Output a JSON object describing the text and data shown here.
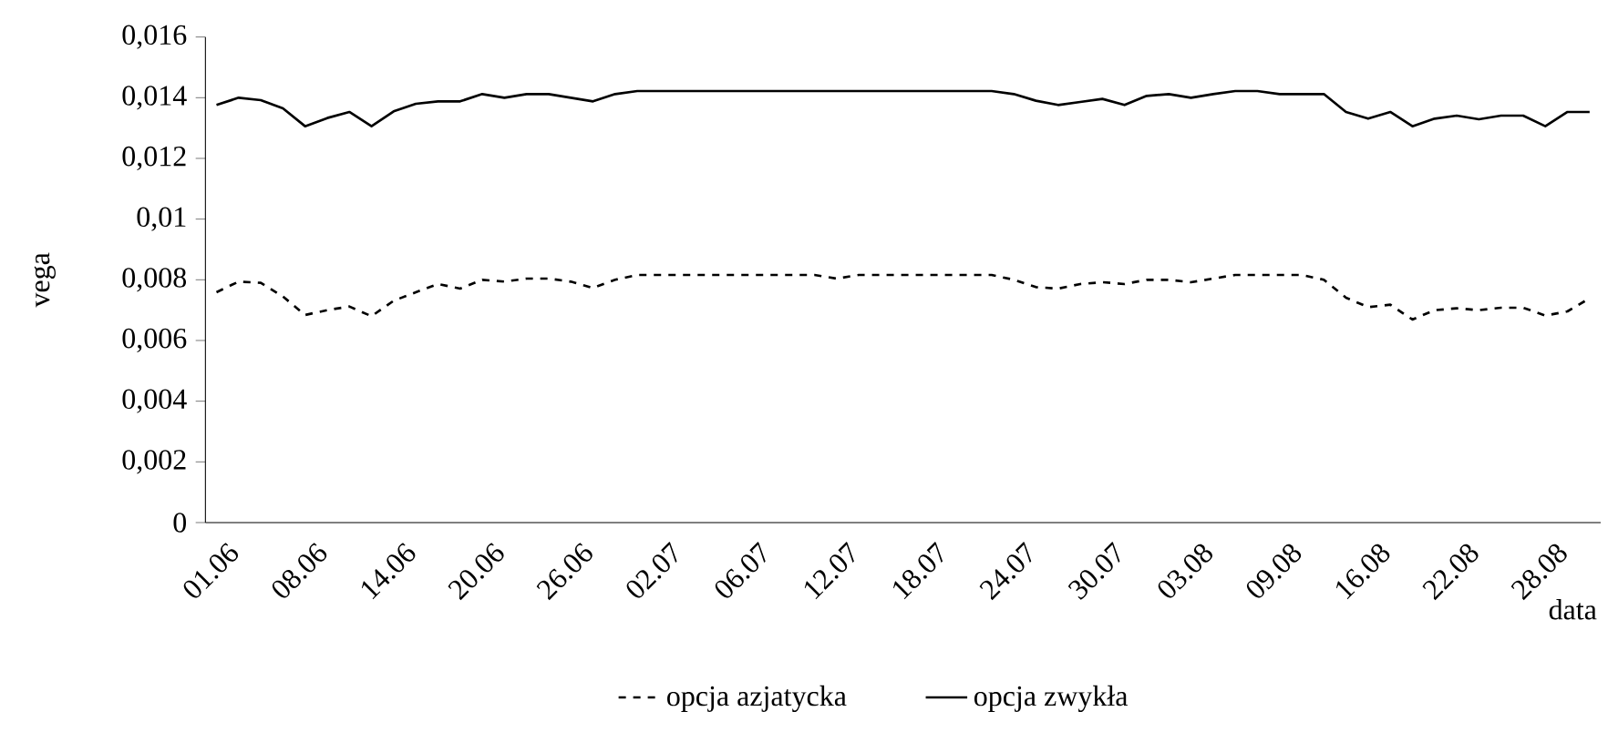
{
  "chart_data": {
    "type": "line",
    "xlabel": "data",
    "ylabel": "vega",
    "categories": [
      "01.06",
      null,
      null,
      null,
      "08.06",
      null,
      null,
      null,
      "14.06",
      null,
      null,
      null,
      "20.06",
      null,
      null,
      null,
      "26.06",
      null,
      null,
      null,
      "02.07",
      null,
      null,
      null,
      "06.07",
      null,
      null,
      null,
      "12.07",
      null,
      null,
      null,
      "18.07",
      null,
      null,
      null,
      "24.07",
      null,
      null,
      null,
      "30.07",
      null,
      null,
      null,
      "03.08",
      null,
      null,
      null,
      "09.08",
      null,
      null,
      null,
      "16.08",
      null,
      null,
      null,
      "22.08",
      null,
      null,
      null,
      "28.08",
      null,
      null
    ],
    "series": [
      {
        "name": "opcja azjatycka",
        "color": "#000000",
        "line_style": "dashed",
        "values": [
          0.00759,
          0.00794,
          0.0079,
          0.00745,
          0.00684,
          0.007,
          0.00712,
          0.0068,
          0.00731,
          0.00759,
          0.00786,
          0.00771,
          0.008,
          0.00794,
          0.00804,
          0.00804,
          0.00794,
          0.00773,
          0.008,
          0.00816,
          0.00816,
          0.00816,
          0.00816,
          0.00816,
          0.00816,
          0.00816,
          0.00816,
          0.00816,
          0.00804,
          0.00816,
          0.00816,
          0.00816,
          0.00816,
          0.00816,
          0.00816,
          0.00816,
          0.008,
          0.00776,
          0.00771,
          0.00786,
          0.00792,
          0.00786,
          0.008,
          0.008,
          0.00792,
          0.00804,
          0.00816,
          0.00816,
          0.00816,
          0.00816,
          0.008,
          0.00741,
          0.0071,
          0.00718,
          0.00669,
          0.007,
          0.00706,
          0.007,
          0.00708,
          0.00708,
          0.00682,
          0.00696,
          0.00739
        ]
      },
      {
        "name": "opcja zwykła",
        "color": "#000000",
        "line_style": "solid",
        "values": [
          0.01376,
          0.014,
          0.01392,
          0.01365,
          0.01306,
          0.01333,
          0.01353,
          0.01306,
          0.01355,
          0.0138,
          0.01388,
          0.01388,
          0.01412,
          0.014,
          0.01412,
          0.01412,
          0.014,
          0.01388,
          0.01412,
          0.01422,
          0.01422,
          0.01422,
          0.01422,
          0.01422,
          0.01422,
          0.01422,
          0.01422,
          0.01422,
          0.01422,
          0.01422,
          0.01422,
          0.01422,
          0.01422,
          0.01422,
          0.01422,
          0.01422,
          0.01412,
          0.0139,
          0.01376,
          0.01386,
          0.01396,
          0.01376,
          0.01406,
          0.01412,
          0.014,
          0.01412,
          0.01422,
          0.01422,
          0.01412,
          0.01412,
          0.01412,
          0.01353,
          0.01331,
          0.01353,
          0.01306,
          0.01331,
          0.01341,
          0.01329,
          0.01341,
          0.01341,
          0.01306,
          0.01353,
          0.01353
        ]
      }
    ],
    "ylim": [
      0,
      0.016
    ],
    "yticks": [
      0,
      {
        "value": 0.002,
        "label": "0,002"
      },
      {
        "value": 0.004,
        "label": "0,004"
      },
      {
        "value": 0.006,
        "label": "0,006"
      },
      {
        "value": 0.008,
        "label": "0,008"
      },
      {
        "value": 0.01,
        "label": "0,01"
      },
      {
        "value": 0.012,
        "label": "0,012"
      },
      {
        "value": 0.014,
        "label": "0,014"
      },
      {
        "value": 0.016,
        "label": "0,016"
      }
    ],
    "grid": false,
    "legend": "bottom",
    "marker": "none"
  }
}
